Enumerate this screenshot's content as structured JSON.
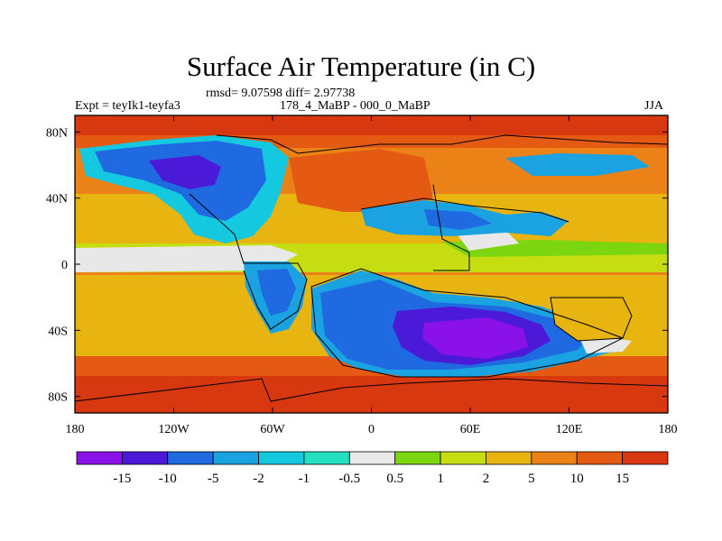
{
  "title": "Surface Air Temperature (in C)",
  "stats": "rmsd= 9.07598 diff= 2.97738",
  "experiment": "Expt = teyIk1-teyfa3",
  "period": "178_4_MaBP - 000_0_MaBP",
  "season": "JJA",
  "map": {
    "lon_range": [
      -180,
      180
    ],
    "lat_range": [
      -90,
      90
    ],
    "x_ticks": [
      {
        "lon": -180,
        "label": "180"
      },
      {
        "lon": -120,
        "label": "120W"
      },
      {
        "lon": -60,
        "label": "60W"
      },
      {
        "lon": 0,
        "label": "0"
      },
      {
        "lon": 60,
        "label": "60E"
      },
      {
        "lon": 120,
        "label": "120E"
      },
      {
        "lon": 180,
        "label": "180"
      }
    ],
    "y_ticks": [
      {
        "lat": 80,
        "label": "80N"
      },
      {
        "lat": 40,
        "label": "40N"
      },
      {
        "lat": 0,
        "label": "0"
      },
      {
        "lat": -40,
        "label": "40S"
      },
      {
        "lat": -80,
        "label": "80S"
      }
    ]
  },
  "colorbar": {
    "colors": [
      "#8a12e8",
      "#4a1ad8",
      "#1f6ae0",
      "#1aa3e0",
      "#14c8e0",
      "#22e0c0",
      "#e8e8e8",
      "#7cd60f",
      "#c6dd12",
      "#e8b410",
      "#ea8218",
      "#e45a12",
      "#d83810"
    ],
    "labels": [
      "-15",
      "-10",
      "-5",
      "-2",
      "-1",
      "-0.5",
      "0.5",
      "1",
      "2",
      "5",
      "10",
      "15"
    ]
  }
}
